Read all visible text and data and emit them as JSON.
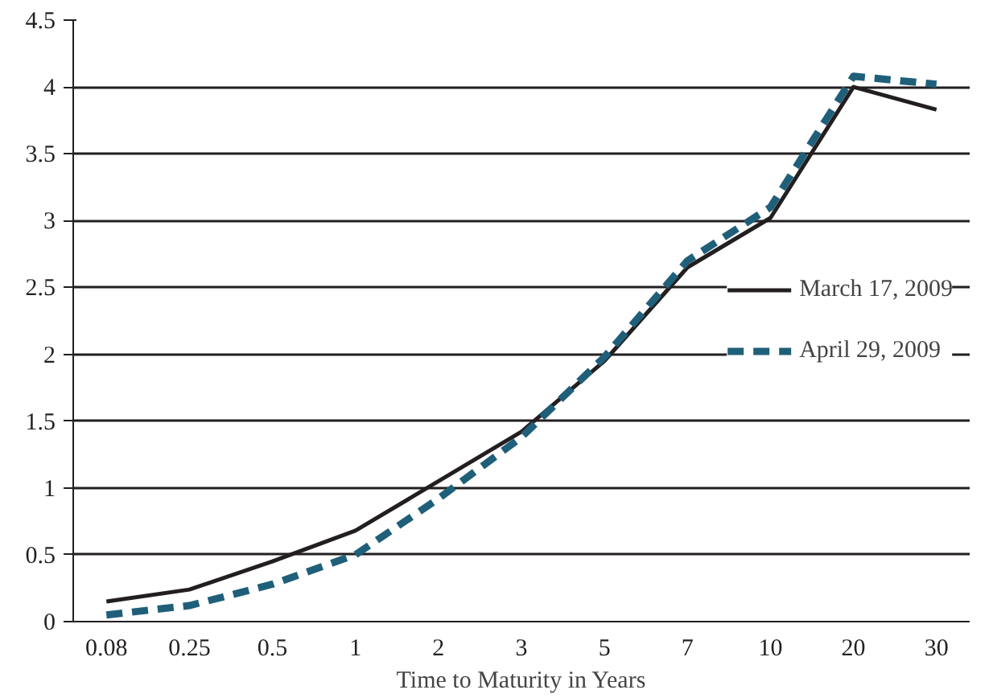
{
  "chart_data": {
    "type": "line",
    "xlabel": "Time to Maturity in Years",
    "categories": [
      "0.08",
      "0.25",
      "0.5",
      "1",
      "2",
      "3",
      "5",
      "7",
      "10",
      "20",
      "30"
    ],
    "series": [
      {
        "name": "March 17, 2009",
        "color": "#231f20",
        "line_style": "solid",
        "values": [
          0.15,
          0.24,
          0.45,
          0.68,
          1.05,
          1.42,
          1.95,
          2.65,
          3.02,
          4.0,
          3.83
        ]
      },
      {
        "name": "April 29, 2009",
        "color": "#1f5f7a",
        "line_style": "dashed",
        "values": [
          0.05,
          0.12,
          0.28,
          0.5,
          0.92,
          1.38,
          1.98,
          2.7,
          3.1,
          4.08,
          4.02
        ]
      }
    ],
    "ylim": [
      0,
      4.5
    ],
    "yticks": [
      0,
      0.5,
      1,
      1.5,
      2,
      2.5,
      3,
      3.5,
      4,
      4.5
    ],
    "grid": "y",
    "legend": "right",
    "marker": "none"
  }
}
